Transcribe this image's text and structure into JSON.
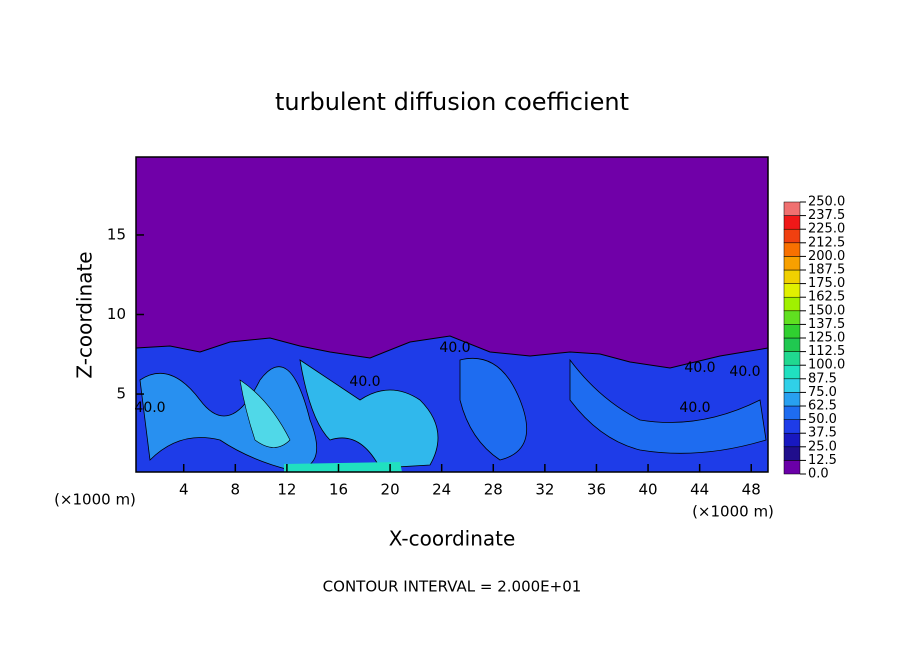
{
  "chart_data": {
    "type": "contour",
    "title": "turbulent diffusion coefficient",
    "x_label": "X-coordinate",
    "y_label": "Z-coordinate",
    "x_unit_left": "(×1000 m)",
    "x_unit_right": "(×1000 m)",
    "footnote": "CONTOUR INTERVAL = 2.000E+01",
    "xlim": [
      0.3,
      49.3
    ],
    "xticks": [
      4,
      8,
      12,
      16,
      20,
      24,
      28,
      32,
      36,
      40,
      44,
      48
    ],
    "ylim": [
      0.1,
      19.9
    ],
    "yticks": [
      5,
      10,
      15
    ],
    "contour_labels": [
      "40.0",
      "40.0",
      "40.0",
      "40.0",
      "40.0",
      "40.0"
    ],
    "colorbar": {
      "levels": [
        {
          "value": 0,
          "label": "0.0"
        },
        12.5,
        {
          "value": 25,
          "label": "25.0"
        },
        37.5,
        {
          "value": 50,
          "label": "50.0"
        },
        62.5,
        {
          "value": 75,
          "label": "75.0"
        },
        87.5,
        {
          "value": 100,
          "label": "100.0"
        },
        112.5,
        {
          "value": 125,
          "label": "125.0"
        },
        137.5,
        {
          "value": 150,
          "label": "150.0"
        },
        162.5,
        {
          "value": 175,
          "label": "175.0"
        },
        187.5,
        {
          "value": 200,
          "label": "200.0"
        },
        212.5,
        {
          "value": 225,
          "label": "225.0"
        },
        237.5,
        {
          "value": 250,
          "label": "250.0"
        }
      ],
      "colors": [
        "#6a00a8",
        "#200e8c",
        "#1818c0",
        "#1e3ce8",
        "#1e6cf0",
        "#28a0f0",
        "#30d0e8",
        "#20e0c0",
        "#20d890",
        "#20c850",
        "#30d030",
        "#60e020",
        "#a0f000",
        "#e0f000",
        "#f0d000",
        "#f8a000",
        "#f87000",
        "#f04010",
        "#f01818",
        "#f07070"
      ]
    }
  }
}
